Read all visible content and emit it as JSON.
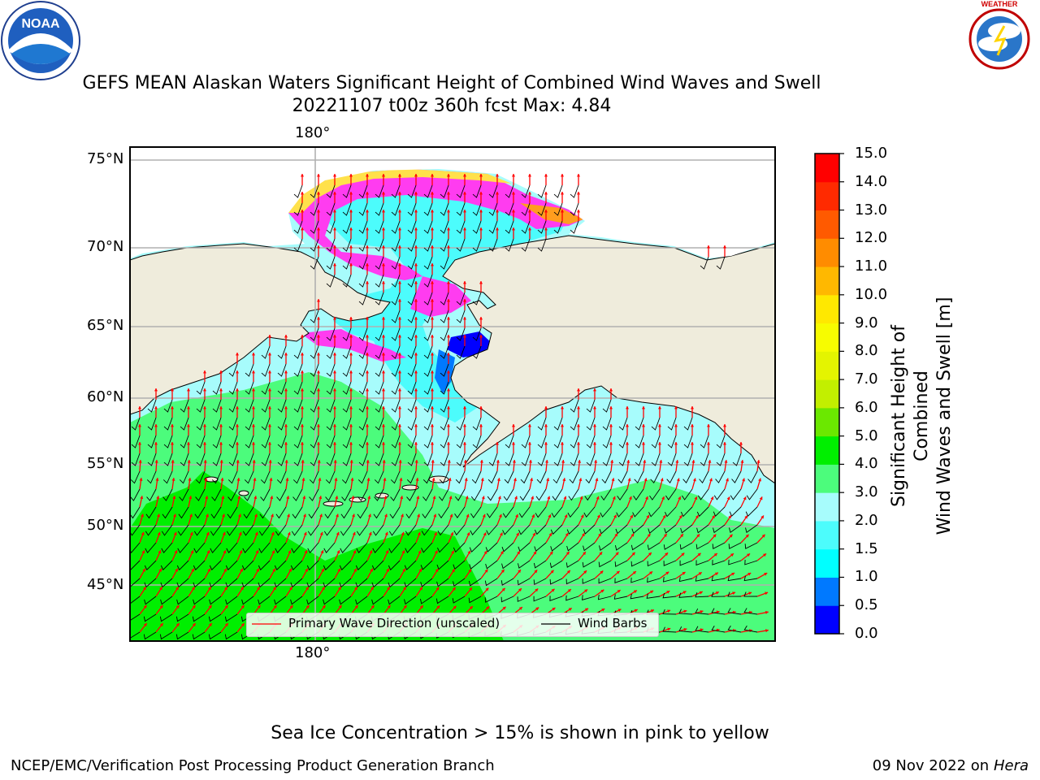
{
  "title": {
    "line1": "GEFS MEAN Alaskan Waters Significant Height of Combined Wind Waves and Swell",
    "line2": "20221107 t00z 360h fcst   Max: 4.84"
  },
  "logos": {
    "left": {
      "name": "NOAA",
      "text": "NOAA",
      "ring_text": "NATIONAL OCEANIC AND ATMOSPHERIC ADMINISTRATION · U.S. DEPARTMENT OF COMMERCE"
    },
    "right": {
      "name": "National Weather Service",
      "ring_text": "NATIONAL WEATHER SERVICE"
    }
  },
  "map": {
    "lat_labels": [
      "75°N",
      "70°N",
      "65°N",
      "60°N",
      "55°N",
      "50°N",
      "45°N"
    ],
    "lon_label_top": "180°",
    "lon_label_bottom": "180°",
    "colors": {
      "land": "#efecdc",
      "ice_pink": "#ff3cf0",
      "ice_yellow": "#ffe14b",
      "ice_orange": "#ff9d1e",
      "arrow": "#ff0000",
      "barb": "#000000",
      "grid": "#b0b0b0"
    }
  },
  "legend": {
    "wave_label": "Primary Wave Direction (unscaled)",
    "barb_label": "Wind Barbs"
  },
  "colorbar": {
    "label_line1": "Significant Height of Combined",
    "label_line2": "Wind Waves and Swell [m]",
    "ticks": [
      "15.0",
      "14.0",
      "13.0",
      "12.0",
      "11.0",
      "10.0",
      "9.0",
      "8.0",
      "7.0",
      "6.0",
      "5.0",
      "4.0",
      "3.0",
      "2.0",
      "1.5",
      "1.0",
      "0.5",
      "0.0"
    ],
    "bins": [
      {
        "from": 0.0,
        "to": 0.5,
        "color": "#0000ff"
      },
      {
        "from": 0.5,
        "to": 1.0,
        "color": "#0079ff"
      },
      {
        "from": 1.0,
        "to": 1.5,
        "color": "#00ffff"
      },
      {
        "from": 1.5,
        "to": 2.0,
        "color": "#4cfcfc"
      },
      {
        "from": 2.0,
        "to": 3.0,
        "color": "#a7fcfc"
      },
      {
        "from": 3.0,
        "to": 4.0,
        "color": "#4cfc7c"
      },
      {
        "from": 4.0,
        "to": 5.0,
        "color": "#00ef00"
      },
      {
        "from": 5.0,
        "to": 6.0,
        "color": "#6be800"
      },
      {
        "from": 6.0,
        "to": 7.0,
        "color": "#c2ef00"
      },
      {
        "from": 7.0,
        "to": 8.0,
        "color": "#e4f400"
      },
      {
        "from": 8.0,
        "to": 9.0,
        "color": "#f7fc00"
      },
      {
        "from": 9.0,
        "to": 10.0,
        "color": "#ffe800"
      },
      {
        "from": 10.0,
        "to": 11.0,
        "color": "#ffb800"
      },
      {
        "from": 11.0,
        "to": 12.0,
        "color": "#ff8c00"
      },
      {
        "from": 12.0,
        "to": 13.0,
        "color": "#ff5a00"
      },
      {
        "from": 13.0,
        "to": 14.0,
        "color": "#ff2a00"
      },
      {
        "from": 14.0,
        "to": 15.0,
        "color": "#ff0000"
      }
    ]
  },
  "ice_note": "Sea Ice Concentration > 15% is shown in pink to yellow",
  "footer": {
    "left": "NCEP/EMC/Verification Post Processing Product Generation Branch",
    "right_date": "09 Nov 2022 on",
    "right_host": "Hera"
  }
}
